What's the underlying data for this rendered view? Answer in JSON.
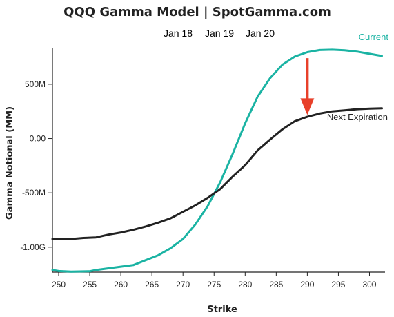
{
  "chart_data": {
    "type": "line",
    "title": "QQQ Gamma Model | SpotGamma.com",
    "xlabel": "Strike",
    "ylabel": "Gamma Notional (MM)",
    "xlim": [
      249,
      302.5
    ],
    "ylim": [
      -1230,
      830
    ],
    "x_ticks": [
      {
        "value": 250,
        "label": "250"
      },
      {
        "value": 255,
        "label": "255"
      },
      {
        "value": 260,
        "label": "260"
      },
      {
        "value": 265,
        "label": "265"
      },
      {
        "value": 270,
        "label": "270"
      },
      {
        "value": 275,
        "label": "275"
      },
      {
        "value": 280,
        "label": "280"
      },
      {
        "value": 285,
        "label": "285"
      },
      {
        "value": 290,
        "label": "290"
      },
      {
        "value": 295,
        "label": "295"
      },
      {
        "value": 300,
        "label": "300"
      }
    ],
    "y_ticks": [
      {
        "value": 500,
        "label": "500M"
      },
      {
        "value": 0,
        "label": "0.00"
      },
      {
        "value": -500,
        "label": "-500M"
      },
      {
        "value": -1000,
        "label": "-1.00G"
      }
    ],
    "grid": false,
    "legend_position": "top-center",
    "legend": [
      {
        "label": "Jan 18",
        "color": "#222222"
      },
      {
        "label": "Jan 19",
        "color": "#222222"
      },
      {
        "label": "Jan 20",
        "color": "#1ab3a3"
      }
    ],
    "series": [
      {
        "name": "Current",
        "color": "#1ab3a3",
        "points": [
          [
            249,
            -1210
          ],
          [
            250,
            -1220
          ],
          [
            252,
            -1225
          ],
          [
            255,
            -1222
          ],
          [
            256,
            -1210
          ],
          [
            258,
            -1195
          ],
          [
            260,
            -1180
          ],
          [
            262,
            -1165
          ],
          [
            264,
            -1120
          ],
          [
            266,
            -1075
          ],
          [
            268,
            -1010
          ],
          [
            270,
            -925
          ],
          [
            272,
            -790
          ],
          [
            274,
            -620
          ],
          [
            276,
            -400
          ],
          [
            278,
            -140
          ],
          [
            280,
            140
          ],
          [
            282,
            385
          ],
          [
            284,
            555
          ],
          [
            286,
            680
          ],
          [
            288,
            755
          ],
          [
            290,
            795
          ],
          [
            292,
            815
          ],
          [
            294,
            818
          ],
          [
            296,
            812
          ],
          [
            298,
            800
          ],
          [
            300,
            780
          ],
          [
            302,
            760
          ]
        ]
      },
      {
        "name": "Next Expiration",
        "color": "#222222",
        "points": [
          [
            249,
            -925
          ],
          [
            252,
            -925
          ],
          [
            254,
            -915
          ],
          [
            256,
            -910
          ],
          [
            258,
            -885
          ],
          [
            260,
            -865
          ],
          [
            262,
            -840
          ],
          [
            264,
            -810
          ],
          [
            266,
            -775
          ],
          [
            268,
            -735
          ],
          [
            270,
            -675
          ],
          [
            272,
            -615
          ],
          [
            274,
            -545
          ],
          [
            276,
            -465
          ],
          [
            278,
            -350
          ],
          [
            280,
            -245
          ],
          [
            282,
            -110
          ],
          [
            284,
            -10
          ],
          [
            286,
            85
          ],
          [
            288,
            160
          ],
          [
            290,
            200
          ],
          [
            292,
            230
          ],
          [
            294,
            250
          ],
          [
            296,
            260
          ],
          [
            298,
            270
          ],
          [
            300,
            275
          ],
          [
            302,
            278
          ]
        ]
      }
    ],
    "annotations": [
      {
        "type": "arrow",
        "color": "#e8402a",
        "x": 290,
        "y_from": 740,
        "y_to": 230
      }
    ]
  }
}
